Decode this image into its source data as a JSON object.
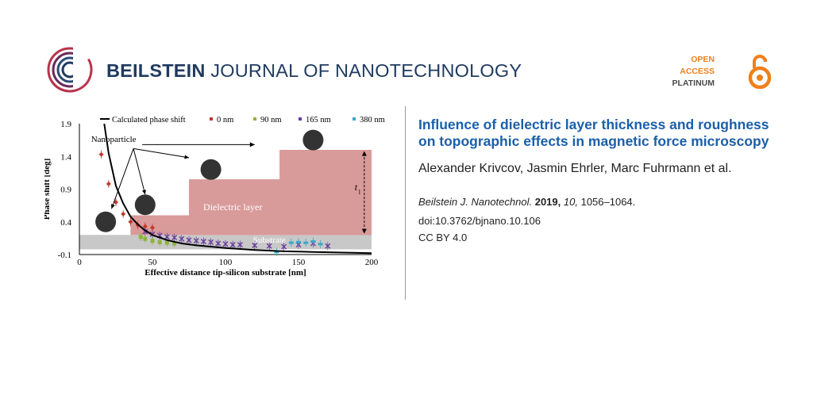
{
  "header": {
    "journal_name_bold": "BEILSTEIN",
    "journal_name_rest": " JOURNAL OF NANOTECHNOLOGY",
    "open_access": {
      "line1": "OPEN",
      "line2": "ACCESS",
      "line3": "PLATINUM"
    },
    "colors": {
      "brand_red": "#b8334b",
      "brand_blue": "#1f3a5f",
      "oa_orange": "#f07f1b"
    }
  },
  "article": {
    "title": "Influence of dielectric layer thickness and roughness on topographic effects in magnetic force microscopy",
    "authors": "Alexander Krivcov, Jasmin Ehrler, Marc Fuhrmann et al.",
    "journal_abbrev": "Beilstein J. Nanotechnol.",
    "year": "2019,",
    "volume": "10,",
    "pages": "1056–1064.",
    "doi": "doi:10.3762/bjnano.10.106",
    "license": "CC BY 4.0"
  },
  "figure": {
    "labels": {
      "nanoparticle": "Nanoparticle",
      "dielectric_layer": "Dielectric layer",
      "substrate": "Substrate",
      "t_label": "t",
      "t_sub": "l"
    }
  },
  "chart_data": {
    "type": "scatter",
    "xlabel": "Effective distance tip-silicon substrate [nm]",
    "ylabel": "Phase shift [deg]",
    "xlim": [
      0,
      200
    ],
    "ylim": [
      -0.1,
      1.9
    ],
    "x_ticks": [
      0,
      50,
      100,
      150,
      200
    ],
    "y_ticks": [
      -0.1,
      0.4,
      0.9,
      1.4,
      1.9
    ],
    "legend_position": "top",
    "curve": {
      "name": "Calculated phase shift",
      "color": "#000000",
      "points": [
        [
          17,
          1.9
        ],
        [
          20,
          1.45
        ],
        [
          25,
          0.95
        ],
        [
          30,
          0.68
        ],
        [
          35,
          0.48
        ],
        [
          40,
          0.36
        ],
        [
          45,
          0.27
        ],
        [
          50,
          0.2
        ],
        [
          60,
          0.12
        ],
        [
          70,
          0.07
        ],
        [
          80,
          0.04
        ],
        [
          100,
          0.0
        ],
        [
          120,
          -0.03
        ],
        [
          140,
          -0.05
        ],
        [
          160,
          -0.06
        ],
        [
          180,
          -0.07
        ],
        [
          200,
          -0.08
        ]
      ]
    },
    "series": [
      {
        "name": "0 nm",
        "color": "#c0392b",
        "marker": "diamond",
        "points": [
          [
            15,
            1.43
          ],
          [
            20,
            0.98
          ],
          [
            25,
            0.7
          ],
          [
            30,
            0.52
          ],
          [
            35,
            0.4
          ],
          [
            40,
            0.35
          ],
          [
            45,
            0.33
          ],
          [
            50,
            0.31
          ]
        ]
      },
      {
        "name": "90 nm",
        "color": "#8db33c",
        "marker": "square",
        "points": [
          [
            42,
            0.17
          ],
          [
            45,
            0.14
          ],
          [
            50,
            0.11
          ],
          [
            55,
            0.09
          ],
          [
            60,
            0.08
          ],
          [
            65,
            0.07
          ]
        ]
      },
      {
        "name": "165 nm",
        "color": "#6a3d9a",
        "marker": "cross",
        "points": [
          [
            45,
            0.25
          ],
          [
            50,
            0.21
          ],
          [
            55,
            0.19
          ],
          [
            60,
            0.17
          ],
          [
            65,
            0.16
          ],
          [
            70,
            0.14
          ],
          [
            75,
            0.12
          ],
          [
            80,
            0.11
          ],
          [
            85,
            0.1
          ],
          [
            90,
            0.09
          ],
          [
            95,
            0.07
          ],
          [
            100,
            0.06
          ],
          [
            105,
            0.05
          ],
          [
            110,
            0.05
          ],
          [
            120,
            0.04
          ],
          [
            130,
            0.03
          ],
          [
            140,
            0.02
          ],
          [
            150,
            0.05
          ],
          [
            160,
            0.07
          ],
          [
            170,
            0.03
          ]
        ]
      },
      {
        "name": "380 nm",
        "color": "#3aa6c9",
        "marker": "dash",
        "points": [
          [
            135,
            -0.06
          ],
          [
            145,
            0.08
          ],
          [
            150,
            0.09
          ],
          [
            155,
            0.08
          ],
          [
            160,
            0.1
          ],
          [
            165,
            0.06
          ]
        ]
      }
    ],
    "steps": [
      [
        35,
        0.5
      ],
      [
        75,
        1.05
      ],
      [
        137,
        1.5
      ]
    ],
    "step_end": 200,
    "substrate_top": 0.2,
    "particles": [
      [
        18,
        0.4
      ],
      [
        45,
        0.66
      ],
      [
        90,
        1.2
      ],
      [
        160,
        1.65
      ]
    ]
  }
}
